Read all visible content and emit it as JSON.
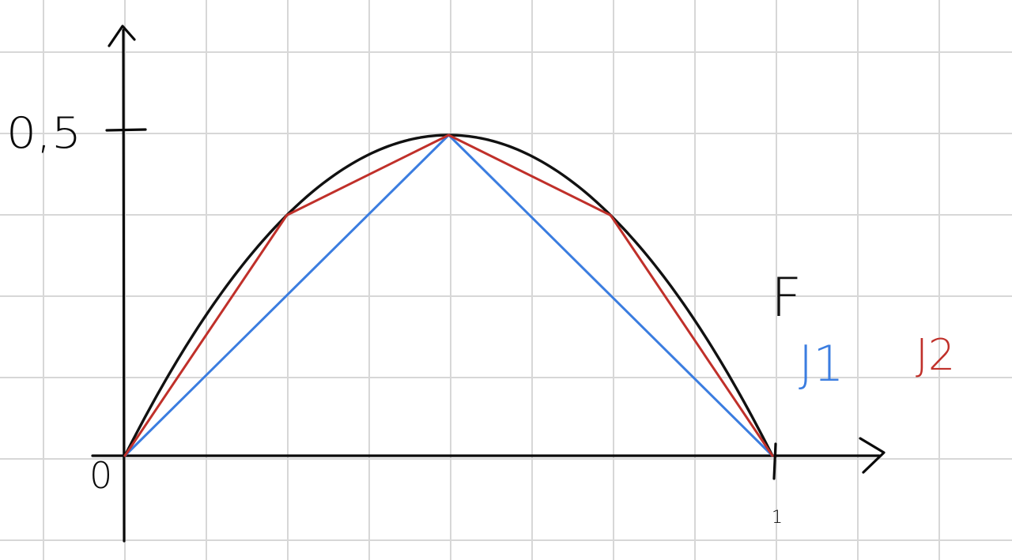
{
  "chart_data": {
    "type": "line",
    "title": "",
    "xlabel": "",
    "ylabel": "",
    "xlim": [
      0,
      1
    ],
    "ylim": [
      0,
      0.5
    ],
    "grid": true,
    "legend_position": "right",
    "tick_labels": {
      "x_origin": "0",
      "x_end": "1",
      "y_top": "0,5"
    },
    "series": [
      {
        "name": "F",
        "color": "#111111",
        "kind": "curve",
        "function": "x*(1-x)*2",
        "x": [
          0,
          0.125,
          0.25,
          0.375,
          0.5,
          0.625,
          0.75,
          0.875,
          1
        ],
        "y": [
          0,
          0.219,
          0.375,
          0.469,
          0.5,
          0.469,
          0.375,
          0.219,
          0
        ]
      },
      {
        "name": "J1",
        "color": "#3b7de0",
        "kind": "polyline",
        "x": [
          0,
          0.5,
          1
        ],
        "y": [
          0,
          0.5,
          0
        ]
      },
      {
        "name": "J2",
        "color": "#c0302a",
        "kind": "polyline",
        "x": [
          0,
          0.25,
          0.5,
          0.75,
          1
        ],
        "y": [
          0,
          0.375,
          0.5,
          0.375,
          0
        ]
      }
    ]
  }
}
